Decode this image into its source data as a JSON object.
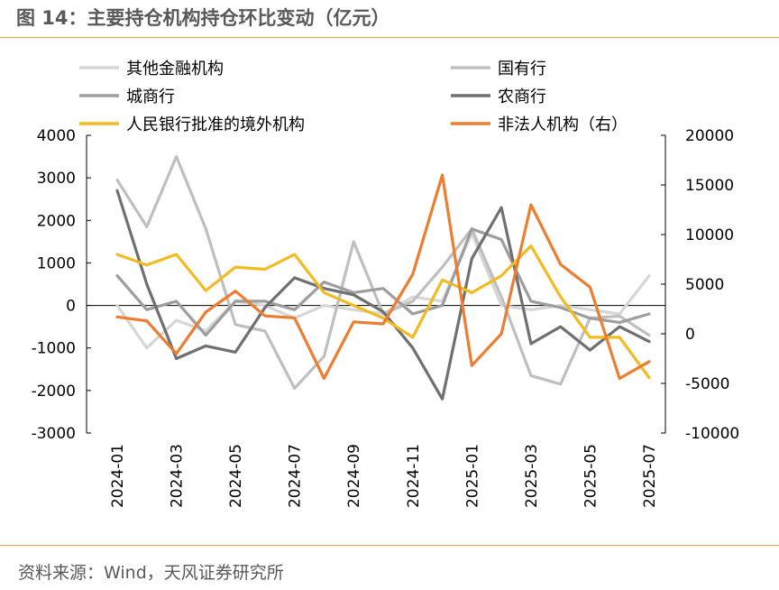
{
  "header": {
    "title": "图 14：主要持仓机构持仓环比变动（亿元）"
  },
  "footer": {
    "source": "资料来源：Wind，天风证券研究所"
  },
  "chart_data": {
    "type": "line",
    "title": "图 14：主要持仓机构持仓环比变动（亿元）",
    "x": [
      "2024-01",
      "2024-02",
      "2024-03",
      "2024-04",
      "2024-05",
      "2024-06",
      "2024-07",
      "2024-08",
      "2024-09",
      "2024-10",
      "2024-11",
      "2024-12",
      "2025-01",
      "2025-02",
      "2025-03",
      "2025-04",
      "2025-05",
      "2025-06",
      "2025-07"
    ],
    "x_tick_labels": [
      "2024-01",
      "2024-03",
      "2024-05",
      "2024-07",
      "2024-09",
      "2024-11",
      "2025-01",
      "2025-03",
      "2025-05",
      "2025-07"
    ],
    "y_left": {
      "ticks": [
        4000,
        3000,
        2000,
        1000,
        0,
        -1000,
        -2000,
        -3000
      ],
      "ylim": [
        -3000,
        4000
      ]
    },
    "y_right": {
      "ticks": [
        20000,
        15000,
        10000,
        5000,
        0,
        -5000,
        -10000
      ],
      "ylim": [
        -10000,
        20000
      ]
    },
    "legend_position": "top",
    "series": [
      {
        "name": "其他金融机构",
        "axis": "left",
        "color": "#d6d6d6",
        "values": [
          0,
          -1000,
          -350,
          -600,
          100,
          0,
          -300,
          0,
          -100,
          -200,
          200,
          100,
          1700,
          0,
          -100,
          0,
          -100,
          -200,
          700
        ]
      },
      {
        "name": "国有行",
        "axis": "left",
        "color": "#bfbfbf",
        "values": [
          2950,
          1850,
          3500,
          1800,
          -450,
          -600,
          -1950,
          -1200,
          1500,
          -200,
          100,
          900,
          1800,
          200,
          -1650,
          -1850,
          -300,
          -250,
          -700
        ]
      },
      {
        "name": "城商行",
        "axis": "left",
        "color": "#9e9e9e",
        "values": [
          700,
          -100,
          100,
          -700,
          100,
          100,
          -100,
          550,
          300,
          400,
          -200,
          0,
          1800,
          1550,
          100,
          -50,
          -300,
          -400,
          -200
        ]
      },
      {
        "name": "农商行",
        "axis": "left",
        "color": "#707070",
        "values": [
          2700,
          500,
          -1250,
          -950,
          -1100,
          -50,
          650,
          400,
          250,
          -150,
          -1000,
          -2200,
          1100,
          2300,
          -900,
          -500,
          -1050,
          -500,
          -850
        ]
      },
      {
        "name": "人民银行批准的境外机构",
        "axis": "left",
        "color": "#f2bb22",
        "values": [
          1200,
          950,
          1200,
          350,
          900,
          850,
          1200,
          300,
          0,
          -300,
          -750,
          600,
          300,
          700,
          1400,
          200,
          -750,
          -750,
          -1700
        ]
      },
      {
        "name": "非法人机构（右）",
        "axis": "right",
        "color": "#ed7d31",
        "values": [
          1700,
          1300,
          -2000,
          2200,
          4300,
          1800,
          1600,
          -4500,
          1200,
          1000,
          6000,
          16000,
          -3200,
          0,
          13000,
          7000,
          4700,
          -4500,
          -2800
        ]
      }
    ]
  }
}
